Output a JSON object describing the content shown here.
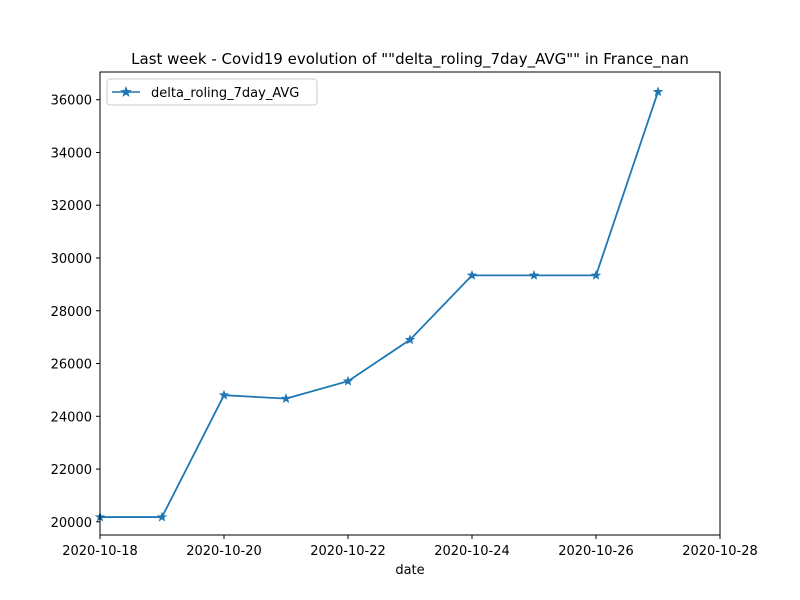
{
  "chart_data": {
    "type": "line",
    "title": "Last week - Covid19 evolution of  \"\"delta_roling_7day_AVG\"\"  in France_nan",
    "xlabel": "date",
    "ylabel": "",
    "x": [
      "2020-10-18",
      "2020-10-19",
      "2020-10-20",
      "2020-10-21",
      "2020-10-22",
      "2020-10-23",
      "2020-10-24",
      "2020-10-25",
      "2020-10-26",
      "2020-10-27"
    ],
    "series": [
      {
        "name": "delta_roling_7day_AVG",
        "values": [
          20180,
          20180,
          24800,
          24670,
          25330,
          26900,
          29340,
          29340,
          29340,
          36300
        ],
        "color": "#1f77b4",
        "marker": "star"
      }
    ],
    "xlim": [
      "2020-10-18",
      "2020-10-28"
    ],
    "ylim": [
      19500,
      37050
    ],
    "x_ticks": [
      "2020-10-18",
      "2020-10-20",
      "2020-10-22",
      "2020-10-24",
      "2020-10-26",
      "2020-10-28"
    ],
    "y_ticks": [
      20000,
      22000,
      24000,
      26000,
      28000,
      30000,
      32000,
      34000,
      36000
    ],
    "grid": false,
    "legend_position": "top-left"
  }
}
